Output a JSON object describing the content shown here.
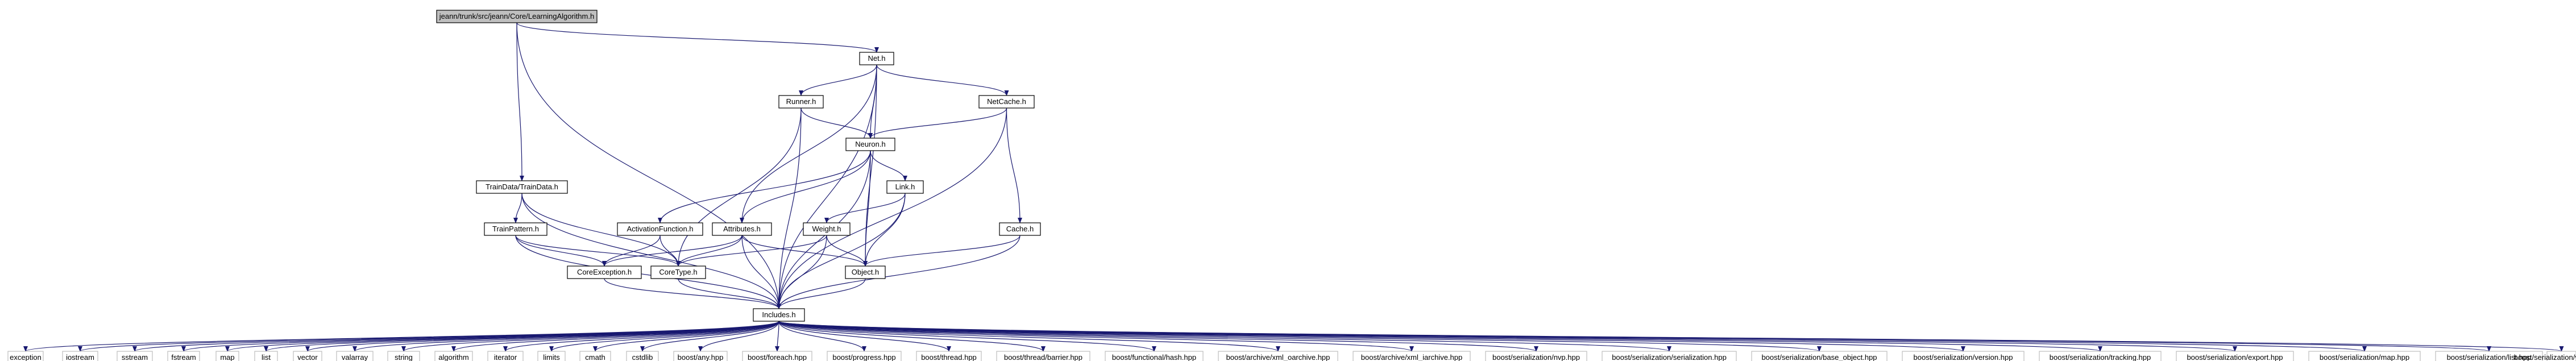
{
  "graph": {
    "title": "",
    "colors": {
      "edge": "#191970",
      "root_fill": "#bfbfbf",
      "node_fill": "#ffffff",
      "node_stroke": "#000000",
      "leaf_stroke": "#bfbfbf"
    },
    "nodes": [
      {
        "id": "root",
        "label": "jeann/trunk/src/jeann/Core/LearningAlgorithm.h",
        "kind": "root"
      },
      {
        "id": "net",
        "label": "Net.h"
      },
      {
        "id": "runner",
        "label": "Runner.h"
      },
      {
        "id": "netcache",
        "label": "NetCache.h"
      },
      {
        "id": "neuron",
        "label": "Neuron.h"
      },
      {
        "id": "traindata",
        "label": "TrainData/TrainData.h"
      },
      {
        "id": "link",
        "label": "Link.h"
      },
      {
        "id": "trainpattern",
        "label": "TrainPattern.h"
      },
      {
        "id": "actfn",
        "label": "ActivationFunction.h"
      },
      {
        "id": "attributes",
        "label": "Attributes.h"
      },
      {
        "id": "weight",
        "label": "Weight.h"
      },
      {
        "id": "cache",
        "label": "Cache.h"
      },
      {
        "id": "coreexc",
        "label": "CoreException.h"
      },
      {
        "id": "coretype",
        "label": "CoreType.h"
      },
      {
        "id": "object",
        "label": "Object.h"
      },
      {
        "id": "includes",
        "label": "Includes.h"
      },
      {
        "id": "l_exception",
        "label": "exception",
        "kind": "leaf"
      },
      {
        "id": "l_iostream",
        "label": "iostream",
        "kind": "leaf"
      },
      {
        "id": "l_sstream",
        "label": "sstream",
        "kind": "leaf"
      },
      {
        "id": "l_fstream",
        "label": "fstream",
        "kind": "leaf"
      },
      {
        "id": "l_map",
        "label": "map",
        "kind": "leaf"
      },
      {
        "id": "l_list",
        "label": "list",
        "kind": "leaf"
      },
      {
        "id": "l_vector",
        "label": "vector",
        "kind": "leaf"
      },
      {
        "id": "l_valarray",
        "label": "valarray",
        "kind": "leaf"
      },
      {
        "id": "l_string",
        "label": "string",
        "kind": "leaf"
      },
      {
        "id": "l_algorithm",
        "label": "algorithm",
        "kind": "leaf"
      },
      {
        "id": "l_iterator",
        "label": "iterator",
        "kind": "leaf"
      },
      {
        "id": "l_limits",
        "label": "limits",
        "kind": "leaf"
      },
      {
        "id": "l_cmath",
        "label": "cmath",
        "kind": "leaf"
      },
      {
        "id": "l_cstdlib",
        "label": "cstdlib",
        "kind": "leaf"
      },
      {
        "id": "l_any",
        "label": "boost/any.hpp",
        "kind": "leaf"
      },
      {
        "id": "l_foreach",
        "label": "boost/foreach.hpp",
        "kind": "leaf"
      },
      {
        "id": "l_progress",
        "label": "boost/progress.hpp",
        "kind": "leaf"
      },
      {
        "id": "l_thread",
        "label": "boost/thread.hpp",
        "kind": "leaf"
      },
      {
        "id": "l_barrier",
        "label": "boost/thread/barrier.hpp",
        "kind": "leaf"
      },
      {
        "id": "l_hash",
        "label": "boost/functional/hash.hpp",
        "kind": "leaf"
      },
      {
        "id": "l_xml_oarchive",
        "label": "boost/archive/xml_oarchive.hpp",
        "kind": "leaf"
      },
      {
        "id": "l_xml_iarchive",
        "label": "boost/archive/xml_iarchive.hpp",
        "kind": "leaf"
      },
      {
        "id": "l_nvp",
        "label": "boost/serialization/nvp.hpp",
        "kind": "leaf"
      },
      {
        "id": "l_serialization",
        "label": "boost/serialization/serialization.hpp",
        "kind": "leaf"
      },
      {
        "id": "l_base_object",
        "label": "boost/serialization/base_object.hpp",
        "kind": "leaf"
      },
      {
        "id": "l_version",
        "label": "boost/serialization/version.hpp",
        "kind": "leaf"
      },
      {
        "id": "l_tracking",
        "label": "boost/serialization/tracking.hpp",
        "kind": "leaf"
      },
      {
        "id": "l_export",
        "label": "boost/serialization/export.hpp",
        "kind": "leaf"
      },
      {
        "id": "l_smap",
        "label": "boost/serialization/map.hpp",
        "kind": "leaf"
      },
      {
        "id": "l_slist",
        "label": "boost/serialization/list.hpp",
        "kind": "leaf"
      },
      {
        "id": "l_svector",
        "label": "boost/serialization/vector.hpp",
        "kind": "leaf"
      }
    ],
    "edges": [
      [
        "root",
        "net"
      ],
      [
        "root",
        "traindata"
      ],
      [
        "root",
        "includes"
      ],
      [
        "net",
        "runner"
      ],
      [
        "net",
        "neuron"
      ],
      [
        "net",
        "netcache"
      ],
      [
        "net",
        "attributes"
      ],
      [
        "net",
        "object"
      ],
      [
        "net",
        "includes"
      ],
      [
        "runner",
        "neuron"
      ],
      [
        "runner",
        "coretype"
      ],
      [
        "runner",
        "includes"
      ],
      [
        "netcache",
        "neuron"
      ],
      [
        "netcache",
        "cache"
      ],
      [
        "netcache",
        "includes"
      ],
      [
        "neuron",
        "actfn"
      ],
      [
        "neuron",
        "attributes"
      ],
      [
        "neuron",
        "link"
      ],
      [
        "neuron",
        "object"
      ],
      [
        "neuron",
        "includes"
      ],
      [
        "traindata",
        "trainpattern"
      ],
      [
        "traindata",
        "coretype"
      ],
      [
        "traindata",
        "includes"
      ],
      [
        "trainpattern",
        "coreexc"
      ],
      [
        "trainpattern",
        "coretype"
      ],
      [
        "trainpattern",
        "includes"
      ],
      [
        "link",
        "weight"
      ],
      [
        "link",
        "object"
      ],
      [
        "link",
        "includes"
      ],
      [
        "actfn",
        "coreexc"
      ],
      [
        "actfn",
        "coretype"
      ],
      [
        "attributes",
        "coreexc"
      ],
      [
        "attributes",
        "coretype"
      ],
      [
        "attributes",
        "object"
      ],
      [
        "attributes",
        "includes"
      ],
      [
        "weight",
        "coretype"
      ],
      [
        "weight",
        "object"
      ],
      [
        "weight",
        "includes"
      ],
      [
        "cache",
        "object"
      ],
      [
        "cache",
        "includes"
      ],
      [
        "coreexc",
        "includes"
      ],
      [
        "coretype",
        "includes"
      ],
      [
        "object",
        "includes"
      ],
      [
        "includes",
        "l_exception"
      ],
      [
        "includes",
        "l_iostream"
      ],
      [
        "includes",
        "l_sstream"
      ],
      [
        "includes",
        "l_fstream"
      ],
      [
        "includes",
        "l_map"
      ],
      [
        "includes",
        "l_list"
      ],
      [
        "includes",
        "l_vector"
      ],
      [
        "includes",
        "l_valarray"
      ],
      [
        "includes",
        "l_string"
      ],
      [
        "includes",
        "l_algorithm"
      ],
      [
        "includes",
        "l_iterator"
      ],
      [
        "includes",
        "l_limits"
      ],
      [
        "includes",
        "l_cmath"
      ],
      [
        "includes",
        "l_cstdlib"
      ],
      [
        "includes",
        "l_any"
      ],
      [
        "includes",
        "l_foreach"
      ],
      [
        "includes",
        "l_progress"
      ],
      [
        "includes",
        "l_thread"
      ],
      [
        "includes",
        "l_barrier"
      ],
      [
        "includes",
        "l_hash"
      ],
      [
        "includes",
        "l_xml_oarchive"
      ],
      [
        "includes",
        "l_xml_iarchive"
      ],
      [
        "includes",
        "l_nvp"
      ],
      [
        "includes",
        "l_serialization"
      ],
      [
        "includes",
        "l_base_object"
      ],
      [
        "includes",
        "l_version"
      ],
      [
        "includes",
        "l_tracking"
      ],
      [
        "includes",
        "l_export"
      ],
      [
        "includes",
        "l_smap"
      ],
      [
        "includes",
        "l_slist"
      ],
      [
        "includes",
        "l_svector"
      ]
    ]
  }
}
